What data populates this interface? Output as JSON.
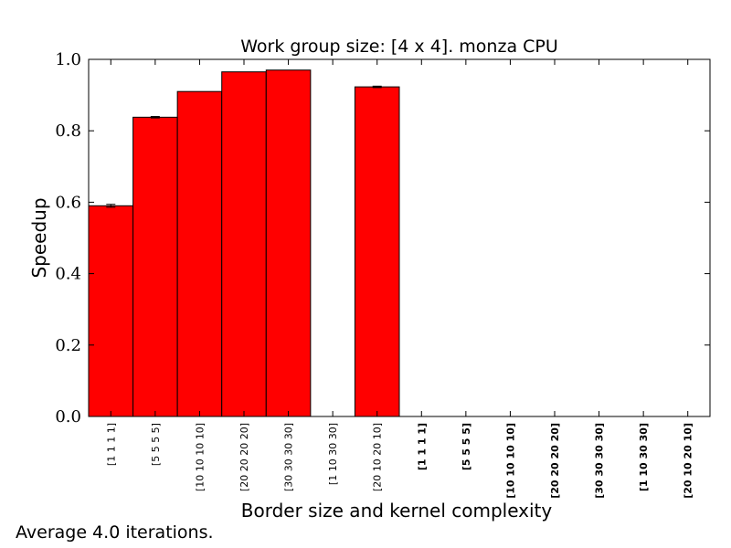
{
  "chart_data": {
    "type": "bar",
    "title": "Work group size: [4 x 4]. monza CPU",
    "xlabel": "Border size and kernel complexity",
    "ylabel": "Speedup",
    "ylim": [
      0.0,
      1.0
    ],
    "yticks": [
      "0.0",
      "0.2",
      "0.4",
      "0.6",
      "0.8",
      "1.0"
    ],
    "grid": false,
    "bar_color": "#ff0000",
    "categories": [
      "[1 1 1 1]",
      "[5 5 5 5]",
      "[10 10 10 10]",
      "[20 20 20 20]",
      "[30 30 30 30]",
      "[1 10 30 30]",
      "[20 10 20 10]",
      "[1 1 1 1]",
      "[5 5 5 5]",
      "[10 10 10 10]",
      "[20 20 20 20]",
      "[30 30 30 30]",
      "[1 10 30 30]",
      "[20 10 20 10]"
    ],
    "bold_categories": [
      false,
      false,
      false,
      false,
      false,
      false,
      false,
      true,
      true,
      true,
      true,
      true,
      true,
      true
    ],
    "values": [
      0.59,
      0.838,
      0.91,
      0.965,
      0.97,
      null,
      0.923,
      null,
      null,
      null,
      null,
      null,
      null,
      null
    ],
    "errors": [
      0.004,
      0.002,
      0.0,
      0.0,
      0.0,
      null,
      0.002,
      null,
      null,
      null,
      null,
      null,
      null,
      null
    ]
  },
  "footnote": "Average 4.0 iterations."
}
